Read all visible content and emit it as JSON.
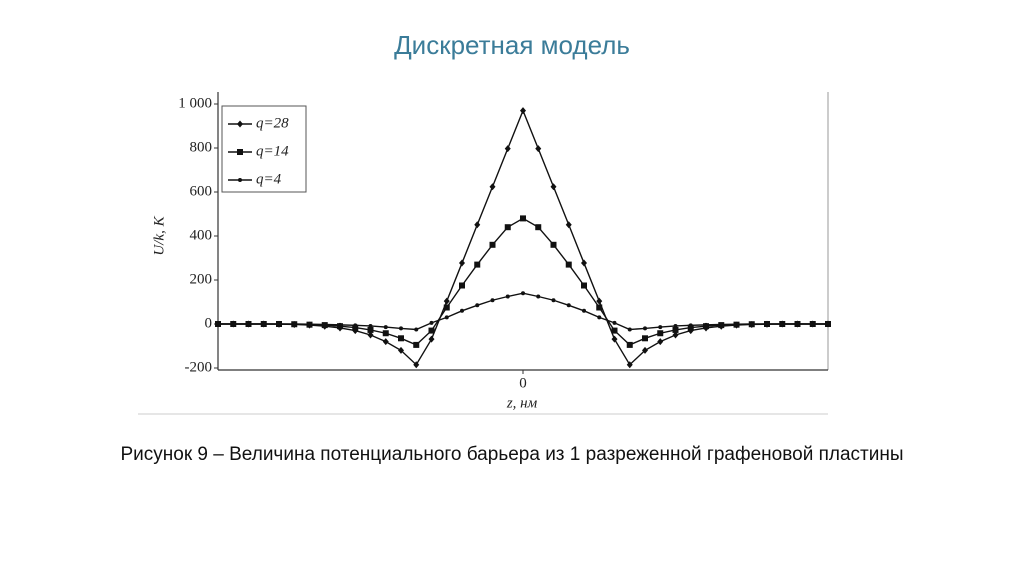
{
  "slide": {
    "title": "Дискретная модель",
    "caption": "Рисунок 9 – Величина потенциального барьера из 1 разреженной графеновой пластины"
  },
  "chart_data": {
    "type": "line",
    "xlabel": "z, нм",
    "ylabel": "U/k, K",
    "x": [
      -5,
      -4.75,
      -4.5,
      -4.25,
      -4,
      -3.75,
      -3.5,
      -3.25,
      -3,
      -2.75,
      -2.5,
      -2.25,
      -2,
      -1.75,
      -1.5,
      -1.25,
      -1,
      -0.75,
      -0.5,
      -0.25,
      0,
      0.25,
      0.5,
      0.75,
      1,
      1.25,
      1.5,
      1.75,
      2,
      2.25,
      2.5,
      2.75,
      3,
      3.25,
      3.5,
      3.75,
      4,
      4.25,
      4.5,
      4.75,
      5
    ],
    "xlim": [
      -5,
      5
    ],
    "xticks": [
      0
    ],
    "ylim": [
      -200,
      1000
    ],
    "yticks": [
      -200,
      0,
      200,
      400,
      600,
      800,
      {
        "value": 1000,
        "label": "1 000"
      }
    ],
    "legend": "upper left",
    "series": [
      {
        "name": "q=28",
        "color": "#111111",
        "marker": "diamond",
        "values": [
          0,
          0,
          0,
          0,
          -1,
          -2,
          -5,
          -10,
          -18,
          -30,
          -50,
          -80,
          -120,
          -185,
          -69,
          104,
          277,
          451,
          624,
          797,
          970,
          797,
          624,
          451,
          277,
          104,
          -69,
          -185,
          -120,
          -80,
          -50,
          -30,
          -18,
          -10,
          -5,
          -2,
          -1,
          0,
          0,
          0,
          0
        ]
      },
      {
        "name": "q=14",
        "color": "#111111",
        "marker": "square",
        "values": [
          0,
          0,
          0,
          0,
          0,
          -1,
          -3,
          -5,
          -10,
          -16,
          -27,
          -42,
          -65,
          -95,
          -30,
          75,
          175,
          270,
          360,
          440,
          480,
          440,
          360,
          270,
          175,
          75,
          -30,
          -95,
          -65,
          -42,
          -27,
          -16,
          -10,
          -5,
          -3,
          -1,
          0,
          0,
          0,
          0,
          0
        ]
      },
      {
        "name": "q=4",
        "color": "#111111",
        "marker": "dot",
        "values": [
          0,
          0,
          0,
          0,
          0,
          0,
          -1,
          -2,
          -4,
          -6,
          -9,
          -14,
          -20,
          -25,
          5,
          30,
          60,
          85,
          108,
          125,
          140,
          125,
          108,
          85,
          60,
          30,
          5,
          -25,
          -20,
          -14,
          -9,
          -6,
          -4,
          -2,
          -1,
          0,
          0,
          0,
          0,
          0,
          0
        ]
      }
    ]
  }
}
